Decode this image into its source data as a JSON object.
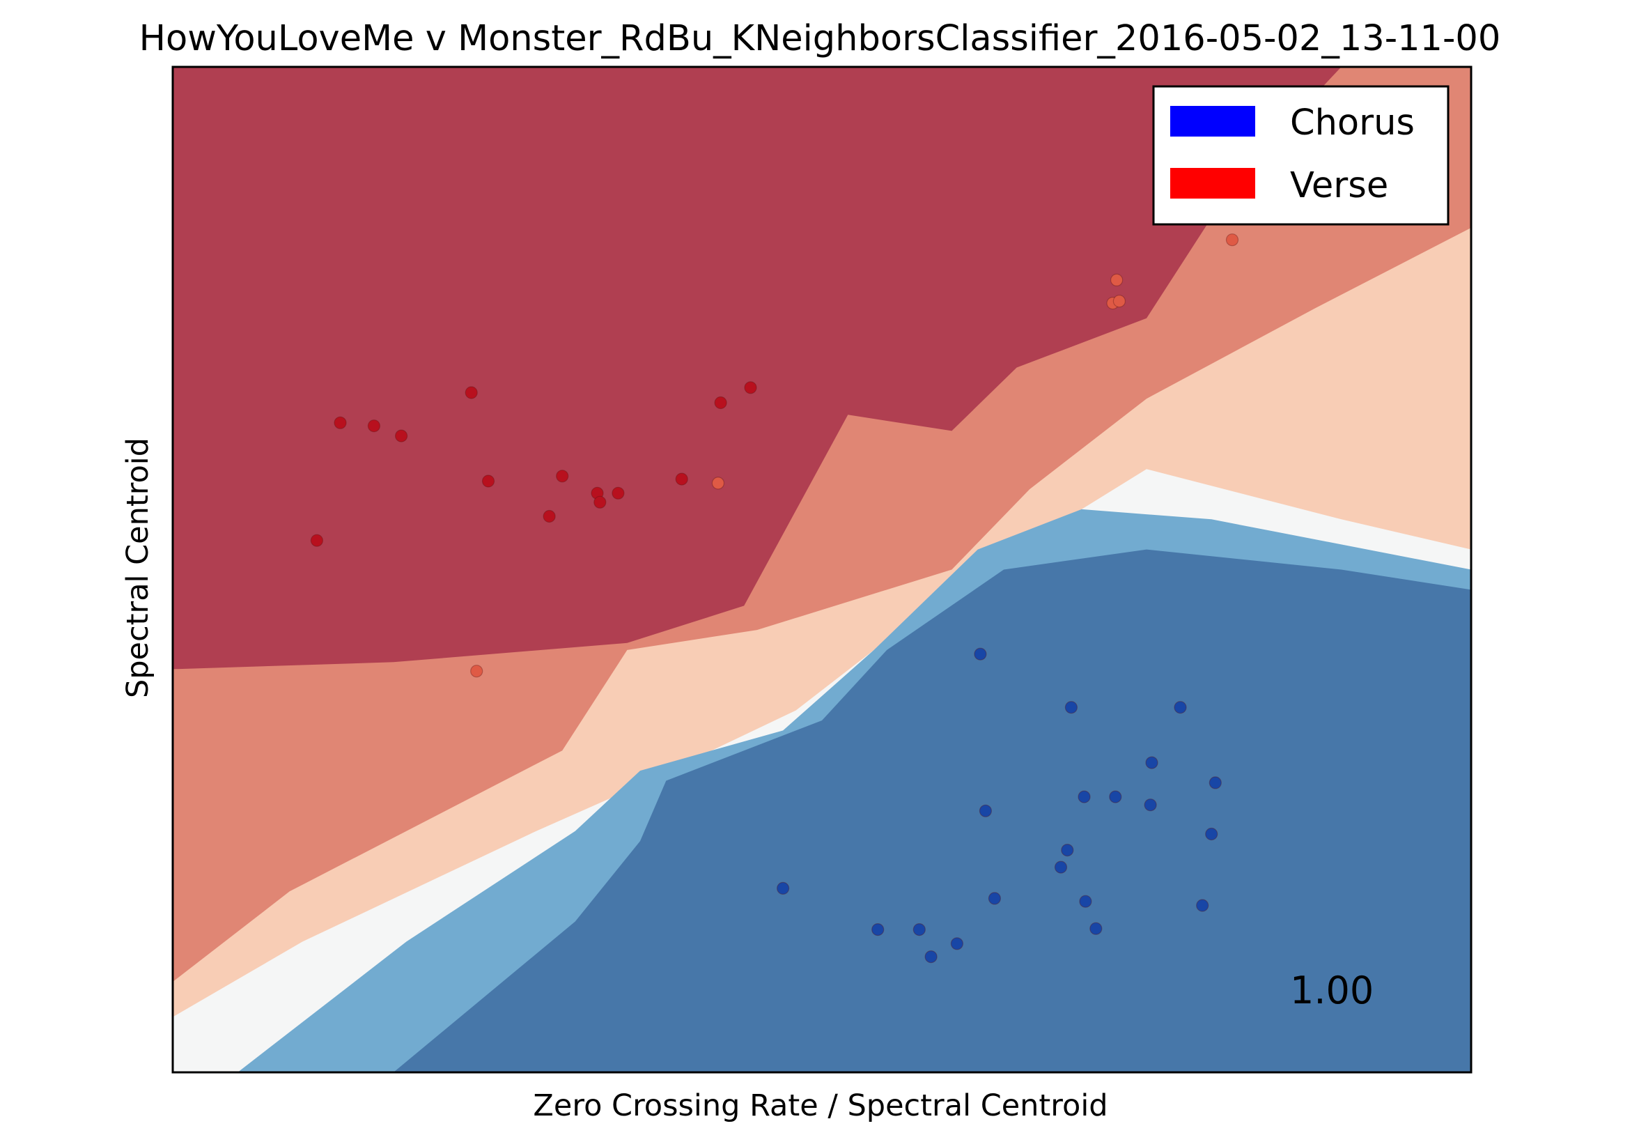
{
  "chart_data": {
    "type": "scatter",
    "title": "HowYouLoveMe v Monster_RdBu_KNeighborsClassifier_2016-05-02_13-11-00",
    "xlabel": "Zero Crossing Rate / Spectral Centroid",
    "ylabel": "Spectral Centroid",
    "xlim": [
      0,
      1
    ],
    "ylim": [
      0,
      1
    ],
    "ticks": "none",
    "grid": false,
    "legend_placement": "top-right",
    "legend": [
      {
        "label": "Chorus",
        "color": "#0000ff"
      },
      {
        "label": "Verse",
        "color": "#ff0000"
      }
    ],
    "score_label": "1.00",
    "decision_regions": {
      "colormap": "RdBu",
      "alpha": 0.8,
      "levels": [
        {
          "name": "verse-strong",
          "color": "#b03f51"
        },
        {
          "name": "verse-mid",
          "color": "#e08674"
        },
        {
          "name": "verse-weak",
          "color": "#f8cdb5"
        },
        {
          "name": "neutral",
          "color": "#f5f6f6"
        },
        {
          "name": "chorus-weak",
          "color": "#72abd0"
        },
        {
          "name": "chorus-strong",
          "color": "#4777a9"
        }
      ],
      "boundaries": [
        {
          "between": "verse-strong|verse-mid",
          "points": [
            [
              0,
              0.401
            ],
            [
              0.17,
              0.408
            ],
            [
              0.35,
              0.427
            ],
            [
              0.44,
              0.464
            ],
            [
              0.52,
              0.654
            ],
            [
              0.6,
              0.638
            ],
            [
              0.65,
              0.701
            ],
            [
              0.75,
              0.75
            ],
            [
              0.82,
              0.89
            ],
            [
              0.9,
              1.0
            ]
          ]
        },
        {
          "name": "verse-mid|verse-weak",
          "points": [
            [
              0,
              0.09
            ],
            [
              0.09,
              0.18
            ],
            [
              0.3,
              0.32
            ],
            [
              0.35,
              0.42
            ],
            [
              0.45,
              0.44
            ],
            [
              0.6,
              0.5
            ],
            [
              0.66,
              0.58
            ],
            [
              0.75,
              0.67
            ],
            [
              0.88,
              0.76
            ],
            [
              1.0,
              0.84
            ]
          ]
        },
        {
          "between": "verse-weak|neutral",
          "points": [
            [
              0,
              0.055
            ],
            [
              0.1,
              0.13
            ],
            [
              0.28,
              0.24
            ],
            [
              0.35,
              0.28
            ],
            [
              0.48,
              0.36
            ],
            [
              0.56,
              0.44
            ],
            [
              0.65,
              0.52
            ],
            [
              0.75,
              0.6
            ],
            [
              0.9,
              0.55
            ],
            [
              1.0,
              0.52
            ]
          ]
        },
        {
          "between": "neutral|chorus-weak",
          "points": [
            [
              0.05,
              0.0
            ],
            [
              0.18,
              0.13
            ],
            [
              0.31,
              0.24
            ],
            [
              0.36,
              0.3
            ],
            [
              0.47,
              0.34
            ],
            [
              0.54,
              0.42
            ],
            [
              0.62,
              0.52
            ],
            [
              0.7,
              0.56
            ],
            [
              0.8,
              0.55
            ],
            [
              1.0,
              0.5
            ]
          ]
        },
        {
          "between": "chorus-weak|chorus-strong",
          "points": [
            [
              0.17,
              0.0
            ],
            [
              0.31,
              0.15
            ],
            [
              0.36,
              0.23
            ],
            [
              0.38,
              0.29
            ],
            [
              0.5,
              0.35
            ],
            [
              0.55,
              0.42
            ],
            [
              0.64,
              0.5
            ],
            [
              0.75,
              0.52
            ],
            [
              0.9,
              0.5
            ],
            [
              1.0,
              0.48
            ]
          ]
        }
      ]
    },
    "series": [
      {
        "name": "Verse",
        "color": "#b8101e",
        "points": [
          {
            "x": 0.111,
            "y": 0.529
          },
          {
            "x": 0.129,
            "y": 0.646
          },
          {
            "x": 0.155,
            "y": 0.643
          },
          {
            "x": 0.176,
            "y": 0.633
          },
          {
            "x": 0.23,
            "y": 0.676
          },
          {
            "x": 0.243,
            "y": 0.588
          },
          {
            "x": 0.29,
            "y": 0.553
          },
          {
            "x": 0.3,
            "y": 0.593
          },
          {
            "x": 0.327,
            "y": 0.576
          },
          {
            "x": 0.329,
            "y": 0.567
          },
          {
            "x": 0.343,
            "y": 0.576
          },
          {
            "x": 0.392,
            "y": 0.59
          },
          {
            "x": 0.422,
            "y": 0.666
          },
          {
            "x": 0.445,
            "y": 0.681
          }
        ]
      },
      {
        "name": "Verse",
        "color": "#df5a45",
        "points": [
          {
            "x": 0.234,
            "y": 0.399
          },
          {
            "x": 0.42,
            "y": 0.586
          },
          {
            "x": 0.724,
            "y": 0.765
          },
          {
            "x": 0.729,
            "y": 0.767
          },
          {
            "x": 0.727,
            "y": 0.788
          },
          {
            "x": 0.816,
            "y": 0.828
          }
        ]
      },
      {
        "name": "Chorus",
        "color": "#1846a6",
        "points": [
          {
            "x": 0.47,
            "y": 0.183
          },
          {
            "x": 0.543,
            "y": 0.142
          },
          {
            "x": 0.575,
            "y": 0.142
          },
          {
            "x": 0.584,
            "y": 0.115
          },
          {
            "x": 0.604,
            "y": 0.128
          },
          {
            "x": 0.622,
            "y": 0.416
          },
          {
            "x": 0.626,
            "y": 0.26
          },
          {
            "x": 0.633,
            "y": 0.173
          },
          {
            "x": 0.684,
            "y": 0.204
          },
          {
            "x": 0.689,
            "y": 0.221
          },
          {
            "x": 0.692,
            "y": 0.363
          },
          {
            "x": 0.702,
            "y": 0.274
          },
          {
            "x": 0.703,
            "y": 0.17
          },
          {
            "x": 0.711,
            "y": 0.143
          },
          {
            "x": 0.726,
            "y": 0.274
          },
          {
            "x": 0.753,
            "y": 0.266
          },
          {
            "x": 0.754,
            "y": 0.308
          },
          {
            "x": 0.776,
            "y": 0.363
          },
          {
            "x": 0.793,
            "y": 0.166
          },
          {
            "x": 0.8,
            "y": 0.237
          },
          {
            "x": 0.803,
            "y": 0.288
          }
        ]
      }
    ]
  }
}
